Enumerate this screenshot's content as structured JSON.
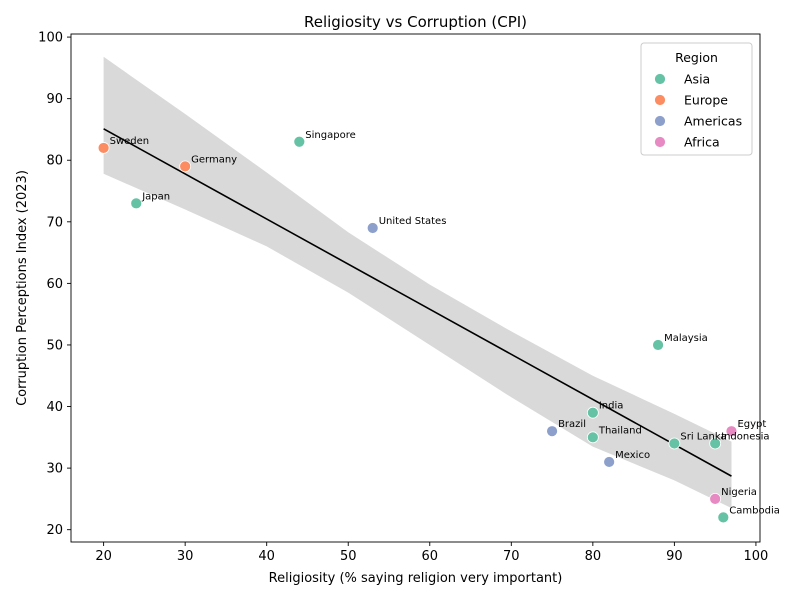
{
  "chart_data": {
    "type": "scatter",
    "title": "Religiosity vs Corruption (CPI)",
    "xlabel": "Religiosity (% saying religion very important)",
    "ylabel": "Corruption Perceptions Index (2023)",
    "xlim": [
      16,
      100.5
    ],
    "ylim": [
      18,
      100.5
    ],
    "xticks": [
      20,
      30,
      40,
      50,
      60,
      70,
      80,
      90,
      100
    ],
    "yticks": [
      20,
      30,
      40,
      50,
      60,
      70,
      80,
      90,
      100
    ],
    "legend": {
      "title": "Region",
      "position": "top-right",
      "entries": [
        {
          "name": "Asia",
          "color": "#66c2a5"
        },
        {
          "name": "Europe",
          "color": "#fc8d62"
        },
        {
          "name": "Americas",
          "color": "#8da0cb"
        },
        {
          "name": "Africa",
          "color": "#e78ac3"
        }
      ]
    },
    "points": [
      {
        "label": "Sweden",
        "x": 20,
        "y": 82,
        "region": "Europe"
      },
      {
        "label": "Germany",
        "x": 30,
        "y": 79,
        "region": "Europe"
      },
      {
        "label": "Japan",
        "x": 24,
        "y": 73,
        "region": "Asia"
      },
      {
        "label": "Singapore",
        "x": 44,
        "y": 83,
        "region": "Asia"
      },
      {
        "label": "United States",
        "x": 53,
        "y": 69,
        "region": "Americas"
      },
      {
        "label": "Malaysia",
        "x": 88,
        "y": 50,
        "region": "Asia"
      },
      {
        "label": "India",
        "x": 80,
        "y": 39,
        "region": "Asia"
      },
      {
        "label": "Brazil",
        "x": 75,
        "y": 36,
        "region": "Americas"
      },
      {
        "label": "Thailand",
        "x": 80,
        "y": 35,
        "region": "Asia"
      },
      {
        "label": "Mexico",
        "x": 82,
        "y": 31,
        "region": "Americas"
      },
      {
        "label": "Sri Lanka",
        "x": 90,
        "y": 34,
        "region": "Asia"
      },
      {
        "label": "Indonesia",
        "x": 95,
        "y": 34,
        "region": "Asia"
      },
      {
        "label": "Egypt",
        "x": 97,
        "y": 36,
        "region": "Africa"
      },
      {
        "label": "Nigeria",
        "x": 95,
        "y": 25,
        "region": "Africa"
      },
      {
        "label": "Cambodia",
        "x": 96,
        "y": 22,
        "region": "Asia"
      }
    ],
    "regression": {
      "x_range": [
        20,
        97
      ],
      "y_start": 85.1,
      "y_end": 28.7,
      "line_color": "#000000",
      "ci_color": "#d9d9d9",
      "ci_upper": [
        {
          "x": 20,
          "y": 96.8
        },
        {
          "x": 30,
          "y": 87.5
        },
        {
          "x": 40,
          "y": 78.0
        },
        {
          "x": 50,
          "y": 68.3
        },
        {
          "x": 60,
          "y": 59.8
        },
        {
          "x": 70,
          "y": 52.2
        },
        {
          "x": 80,
          "y": 45.0
        },
        {
          "x": 90,
          "y": 38.8
        },
        {
          "x": 97,
          "y": 34.3
        }
      ],
      "ci_lower": [
        {
          "x": 20,
          "y": 77.8
        },
        {
          "x": 30,
          "y": 72.0
        },
        {
          "x": 40,
          "y": 66.0
        },
        {
          "x": 50,
          "y": 58.5
        },
        {
          "x": 60,
          "y": 50.0
        },
        {
          "x": 70,
          "y": 41.5
        },
        {
          "x": 80,
          "y": 33.5
        },
        {
          "x": 90,
          "y": 28.0
        },
        {
          "x": 97,
          "y": 23.5
        }
      ]
    }
  }
}
